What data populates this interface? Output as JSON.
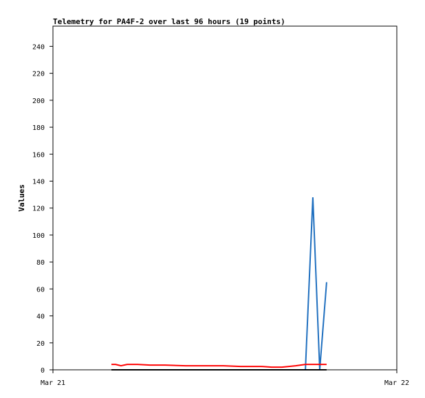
{
  "chart_data": {
    "type": "line",
    "title": "Telemetry for PA4F-2 over last 96 hours (19 points)",
    "y_label": "Values",
    "x": [
      4.08,
      4.37,
      4.75,
      5.18,
      5.9,
      6.77,
      7.82,
      9.26,
      10.7,
      11.9,
      13.1,
      14.54,
      15.26,
      15.98,
      16.94,
      17.62,
      18.14,
      18.62,
      19.1
    ],
    "xlim": [
      0,
      24
    ],
    "xticks": [
      {
        "value": 0,
        "label": "Mar 21"
      },
      {
        "value": 24,
        "label": "Mar 22"
      }
    ],
    "ylim": [
      0,
      255
    ],
    "yticks": [
      0,
      20,
      40,
      60,
      80,
      100,
      120,
      140,
      160,
      180,
      200,
      220,
      240
    ],
    "series": [
      {
        "color": "#1f6fbf",
        "values": [
          0,
          0,
          0,
          0,
          0,
          0,
          0,
          0,
          0,
          0,
          0,
          0,
          0,
          0,
          0,
          0,
          128,
          0,
          65
        ]
      },
      {
        "color": "#ff0000",
        "values": [
          4,
          4,
          3,
          4,
          4,
          3.5,
          3.5,
          3,
          3,
          3,
          2.5,
          2.5,
          2,
          2,
          3,
          4,
          4,
          4,
          4
        ]
      },
      {
        "color": "#000000",
        "values": [
          0,
          0,
          0,
          0,
          0,
          0,
          0,
          0,
          0,
          0,
          0,
          0,
          0,
          0,
          0,
          0,
          0,
          0,
          0
        ]
      }
    ]
  }
}
